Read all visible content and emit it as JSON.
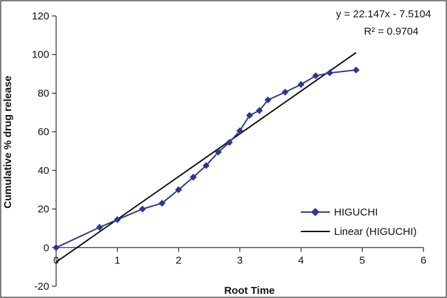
{
  "chart_data": {
    "type": "scatter",
    "title": "",
    "xlabel": "Root Time",
    "ylabel": "Cumulative % drug release",
    "xlim": [
      0,
      6
    ],
    "ylim": [
      -20,
      120
    ],
    "x_ticks": [
      0,
      1,
      2,
      3,
      4,
      5,
      6
    ],
    "y_ticks": [
      -20,
      0,
      20,
      40,
      60,
      80,
      100,
      120
    ],
    "grid": false,
    "legend_position": "bottom-right",
    "series": [
      {
        "name": "HIGUCHI",
        "color": "#2b3990",
        "marker": "diamond",
        "x": [
          0,
          0.71,
          1,
          1.41,
          1.73,
          2,
          2.24,
          2.45,
          2.65,
          2.83,
          3,
          3.16,
          3.32,
          3.46,
          3.74,
          4,
          4.24,
          4.47,
          4.9
        ],
        "y": [
          0,
          10.5,
          14.5,
          20,
          23,
          30,
          36.5,
          42.5,
          49.5,
          54.5,
          60.5,
          68.5,
          71,
          76.5,
          80.5,
          84.5,
          89,
          90.5,
          92
        ]
      },
      {
        "name": "Linear (HIGUCHI)",
        "color": "#111111",
        "type": "trendline",
        "slope": 22.147,
        "intercept": -7.5104,
        "x_range": [
          0,
          4.9
        ]
      }
    ],
    "annotations": {
      "equation": "y = 22.147x - 7.5104",
      "r_squared": "R² = 0.9704"
    }
  }
}
